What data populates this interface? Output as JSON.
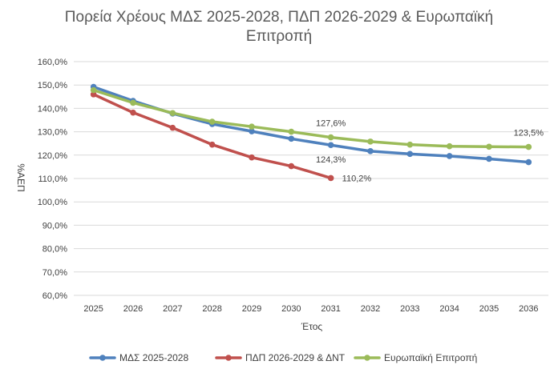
{
  "chart_data": {
    "type": "line",
    "title": "Πορεία Χρέους ΜΔΣ 2025-2028, ΠΔΠ 2026-2029 & Ευρωπαϊκή Επιτροπή",
    "title_lines": [
      "Πορεία Χρέους ΜΔΣ 2025-2028, ΠΔΠ 2026-2029 & Ευρωπαϊκή",
      "Επιτροπή"
    ],
    "xlabel": "Έτος",
    "ylabel": "%ΑΕΠ",
    "ylim": [
      60,
      160
    ],
    "ytick_step": 10,
    "ytick_format": "0.0%",
    "grid": true,
    "legend": "bottom",
    "categories": [
      "2025",
      "2026",
      "2027",
      "2028",
      "2029",
      "2030",
      "2031",
      "2032",
      "2033",
      "2034",
      "2035",
      "2036"
    ],
    "series": [
      {
        "name": "ΜΔΣ 2025-2028",
        "color": "#4f81bd",
        "values": [
          149.2,
          143.2,
          137.8,
          133.3,
          130.2,
          127.0,
          124.3,
          121.7,
          120.5,
          119.6,
          118.4,
          117.0
        ]
      },
      {
        "name": "ΠΔΠ 2026-2029 & ΔΝΤ",
        "color": "#c0504d",
        "values": [
          146.0,
          138.2,
          131.7,
          124.5,
          119.0,
          115.3,
          110.2,
          null,
          null,
          null,
          null,
          null
        ]
      },
      {
        "name": "Ευρωπαϊκή Επιτροπή",
        "color": "#9bbb59",
        "values": [
          147.8,
          142.4,
          138.0,
          134.3,
          132.2,
          130.0,
          127.6,
          125.8,
          124.5,
          123.8,
          123.6,
          123.5
        ]
      }
    ],
    "annotations": [
      {
        "text": "127,6%",
        "series": 2,
        "index": 6,
        "position": "above"
      },
      {
        "text": "124,3%",
        "series": 0,
        "index": 6,
        "position": "below"
      },
      {
        "text": "110,2%",
        "series": 1,
        "index": 6,
        "position": "right"
      },
      {
        "text": "123,5%",
        "series": 2,
        "index": 11,
        "position": "above"
      }
    ]
  }
}
